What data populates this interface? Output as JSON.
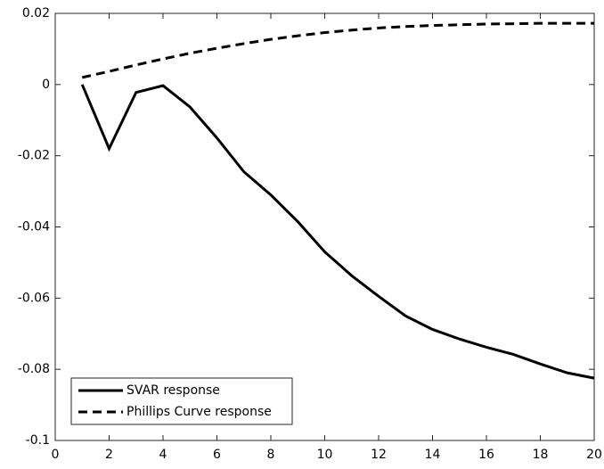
{
  "chart_data": {
    "type": "line",
    "x": [
      1,
      2,
      3,
      4,
      5,
      6,
      7,
      8,
      9,
      10,
      11,
      12,
      13,
      14,
      15,
      16,
      17,
      18,
      19,
      20
    ],
    "series": [
      {
        "name": "SVAR response",
        "color": "#000000",
        "linestyle": "solid",
        "values": [
          0,
          -0.018,
          -0.0022,
          -0.0003,
          -0.0063,
          -0.015,
          -0.0245,
          -0.031,
          -0.0385,
          -0.047,
          -0.0537,
          -0.0595,
          -0.065,
          -0.0688,
          -0.0715,
          -0.0738,
          -0.0758,
          -0.0785,
          -0.081,
          -0.0825
        ]
      },
      {
        "name": "Phillips Curve response",
        "color": "#000000",
        "linestyle": "dashed",
        "values": [
          0.002,
          0.0037,
          0.0055,
          0.0072,
          0.0088,
          0.0102,
          0.0115,
          0.0127,
          0.0137,
          0.0146,
          0.0153,
          0.0159,
          0.0163,
          0.0166,
          0.0168,
          0.017,
          0.0171,
          0.0172,
          0.0172,
          0.0172
        ]
      }
    ],
    "xlim": [
      0,
      20
    ],
    "xticks": [
      0,
      2,
      4,
      6,
      8,
      10,
      12,
      14,
      16,
      18,
      20
    ],
    "ylim": [
      -0.1,
      0.02
    ],
    "yticks": [
      -0.1,
      -0.08,
      -0.06,
      -0.04,
      -0.02,
      0,
      0.02
    ],
    "grid": false,
    "legend": "lower left"
  }
}
